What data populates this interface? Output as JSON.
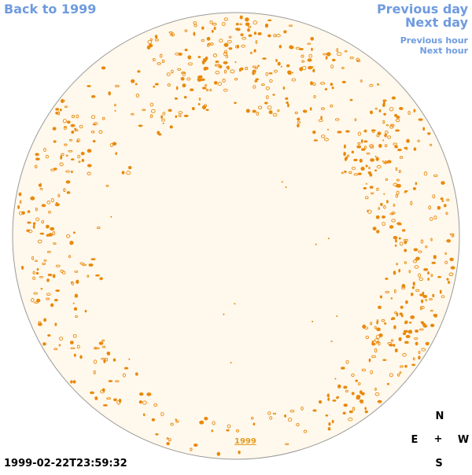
{
  "nav": {
    "back_label": "Back to 1999",
    "prev_day_label": "Previous day",
    "next_day_label": "Next day",
    "prev_hour_label": "Previous hour",
    "next_hour_label": "Next hour"
  },
  "timestamp": "1999-02-22T23:59:32",
  "year_label": "1999",
  "compass": {
    "north": "N",
    "south": "S",
    "east": "E",
    "west": "W",
    "center": "+"
  },
  "colors": {
    "disk_fill": "#fff8ec",
    "disk_border": "#9a9a9a",
    "feature": "#e8890c",
    "link": "#6f9bdf"
  }
}
